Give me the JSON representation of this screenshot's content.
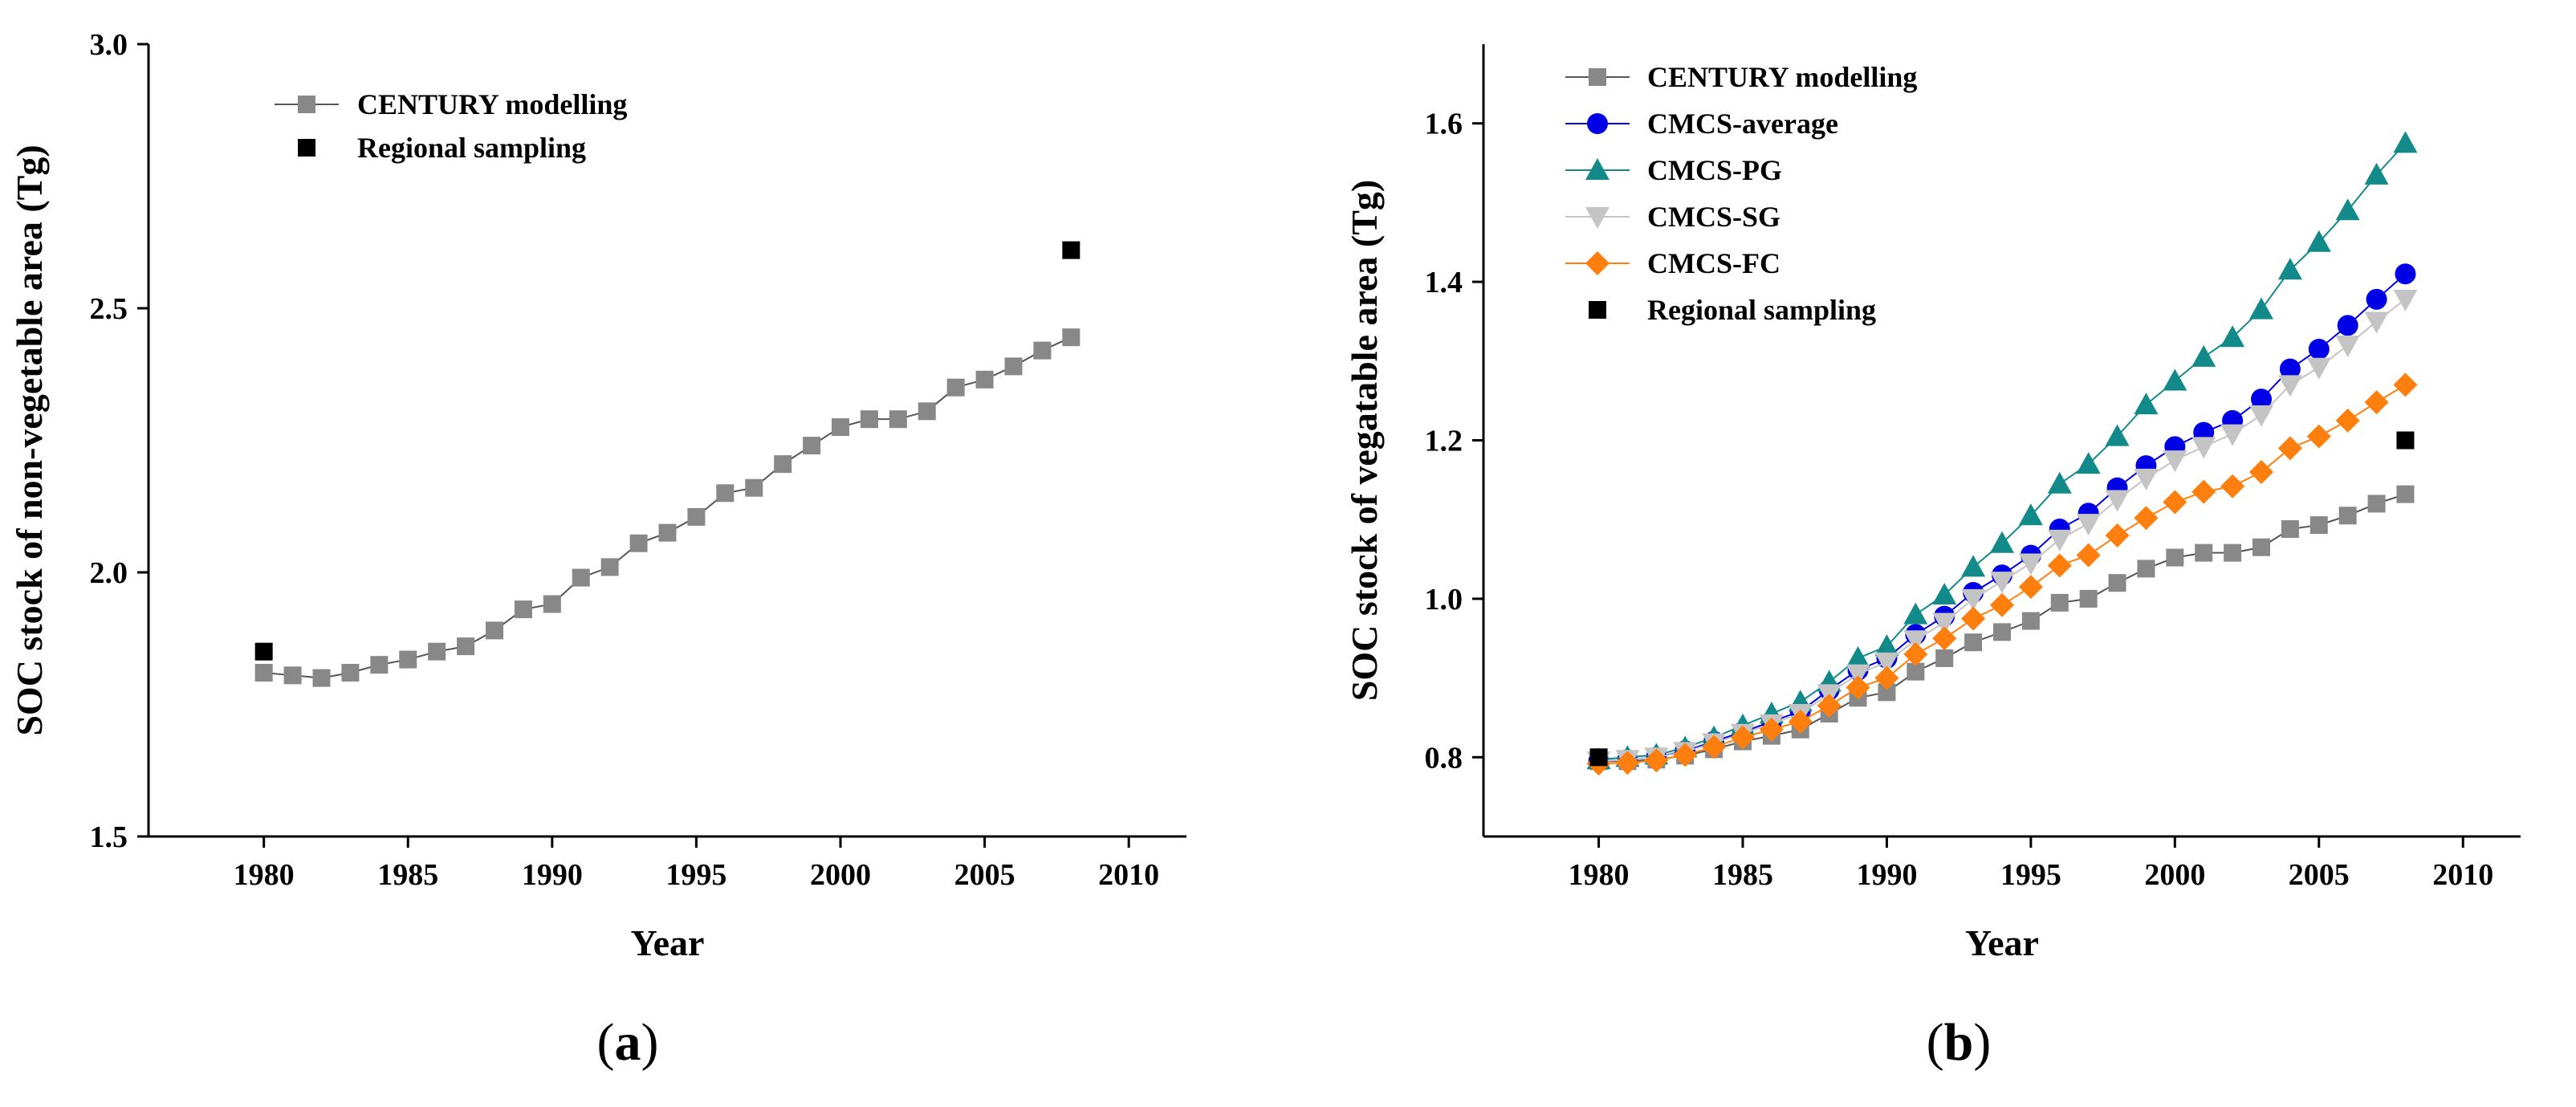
{
  "colors": {
    "century": "#888888",
    "cmcs_average": "#0000e6",
    "cmcs_pg": "#138a8a",
    "cmcs_sg": "#c4c4c4",
    "cmcs_fc": "#ff7f0e",
    "sampling": "#000000"
  },
  "chart_data": [
    {
      "type": "line",
      "panel_label": "(a)",
      "panel_label_letter": "a",
      "title": "",
      "xlabel": "Year",
      "ylabel": "SOC stock of non-vegetable area (Tg)",
      "xlim": [
        1976,
        2012
      ],
      "ylim": [
        1.5,
        3.0
      ],
      "xticks": [
        1980,
        1985,
        1990,
        1995,
        2000,
        2005,
        2010
      ],
      "yticks": [
        1.5,
        2.0,
        2.5,
        3.0
      ],
      "ytick_labels": [
        "1.5",
        "2.0",
        "2.5",
        "3.0"
      ],
      "legend_position": "top-left",
      "series": [
        {
          "name": "CENTURY modelling",
          "key": "century",
          "marker": "square",
          "line": true,
          "x": [
            1980,
            1981,
            1982,
            1983,
            1984,
            1985,
            1986,
            1987,
            1988,
            1989,
            1990,
            1991,
            1992,
            1993,
            1994,
            1995,
            1996,
            1997,
            1998,
            1999,
            2000,
            2001,
            2002,
            2003,
            2004,
            2005,
            2006,
            2007,
            2008
          ],
          "values": [
            1.81,
            1.805,
            1.8,
            1.81,
            1.825,
            1.835,
            1.85,
            1.86,
            1.89,
            1.93,
            1.94,
            1.99,
            2.01,
            2.055,
            2.075,
            2.105,
            2.15,
            2.16,
            2.205,
            2.24,
            2.275,
            2.29,
            2.29,
            2.305,
            2.35,
            2.365,
            2.39,
            2.42,
            2.445
          ]
        },
        {
          "name": "Regional sampling",
          "key": "sampling",
          "marker": "square",
          "line": false,
          "x": [
            1980,
            2008
          ],
          "values": [
            1.85,
            2.61
          ]
        }
      ]
    },
    {
      "type": "line",
      "panel_label": "(b)",
      "panel_label_letter": "b",
      "title": "",
      "xlabel": "Year",
      "ylabel": "SOC stock of vegatable area (Tg)",
      "xlim": [
        1976,
        2012
      ],
      "ylim": [
        0.7,
        1.7
      ],
      "xticks": [
        1980,
        1985,
        1990,
        1995,
        2000,
        2005,
        2010
      ],
      "yticks": [
        0.8,
        1.0,
        1.2,
        1.4,
        1.6
      ],
      "ytick_labels": [
        "0.8",
        "1.0",
        "1.2",
        "1.4",
        "1.6"
      ],
      "legend_position": "top-left",
      "series": [
        {
          "name": "CENTURY modelling",
          "key": "century",
          "marker": "square",
          "line": true,
          "x": [
            1980,
            1981,
            1982,
            1983,
            1984,
            1985,
            1986,
            1987,
            1988,
            1989,
            1990,
            1991,
            1992,
            1993,
            1994,
            1995,
            1996,
            1997,
            1998,
            1999,
            2000,
            2001,
            2002,
            2003,
            2004,
            2005,
            2006,
            2007,
            2008
          ],
          "values": [
            0.795,
            0.795,
            0.797,
            0.802,
            0.81,
            0.82,
            0.827,
            0.835,
            0.855,
            0.875,
            0.882,
            0.908,
            0.925,
            0.945,
            0.958,
            0.972,
            0.995,
            1.0,
            1.02,
            1.038,
            1.052,
            1.058,
            1.058,
            1.065,
            1.088,
            1.093,
            1.105,
            1.12,
            1.132
          ]
        },
        {
          "name": "CMCS-average",
          "key": "cmcs_average",
          "marker": "circle",
          "line": true,
          "x": [
            1980,
            1981,
            1982,
            1983,
            1984,
            1985,
            1986,
            1987,
            1988,
            1989,
            1990,
            1991,
            1992,
            1993,
            1994,
            1995,
            1996,
            1997,
            1998,
            1999,
            2000,
            2001,
            2002,
            2003,
            2004,
            2005,
            2006,
            2007,
            2008
          ],
          "values": [
            0.795,
            0.797,
            0.8,
            0.808,
            0.82,
            0.832,
            0.845,
            0.858,
            0.885,
            0.91,
            0.925,
            0.955,
            0.978,
            1.008,
            1.03,
            1.055,
            1.088,
            1.108,
            1.14,
            1.168,
            1.192,
            1.21,
            1.225,
            1.252,
            1.29,
            1.315,
            1.345,
            1.378,
            1.41
          ]
        },
        {
          "name": "CMCS-PG",
          "key": "cmcs_pg",
          "marker": "triangle-up",
          "line": true,
          "x": [
            1980,
            1981,
            1982,
            1983,
            1984,
            1985,
            1986,
            1987,
            1988,
            1989,
            1990,
            1991,
            1992,
            1993,
            1994,
            1995,
            1996,
            1997,
            1998,
            1999,
            2000,
            2001,
            2002,
            2003,
            2004,
            2005,
            2006,
            2007,
            2008
          ],
          "values": [
            0.797,
            0.8,
            0.803,
            0.812,
            0.825,
            0.84,
            0.855,
            0.87,
            0.895,
            0.925,
            0.94,
            0.98,
            1.005,
            1.04,
            1.07,
            1.105,
            1.145,
            1.17,
            1.205,
            1.245,
            1.275,
            1.305,
            1.33,
            1.365,
            1.415,
            1.45,
            1.49,
            1.535,
            1.575
          ]
        },
        {
          "name": "CMCS-SG",
          "key": "cmcs_sg",
          "marker": "triangle-down",
          "line": true,
          "x": [
            1980,
            1981,
            1982,
            1983,
            1984,
            1985,
            1986,
            1987,
            1988,
            1989,
            1990,
            1991,
            1992,
            1993,
            1994,
            1995,
            1996,
            1997,
            1998,
            1999,
            2000,
            2001,
            2002,
            2003,
            2004,
            2005,
            2006,
            2007,
            2008
          ],
          "values": [
            0.795,
            0.797,
            0.8,
            0.807,
            0.818,
            0.83,
            0.842,
            0.855,
            0.88,
            0.905,
            0.92,
            0.948,
            0.97,
            1.0,
            1.022,
            1.045,
            1.075,
            1.095,
            1.125,
            1.152,
            1.175,
            1.192,
            1.208,
            1.232,
            1.27,
            1.292,
            1.32,
            1.35,
            1.378
          ]
        },
        {
          "name": "CMCS-FC",
          "key": "cmcs_fc",
          "marker": "diamond",
          "line": true,
          "x": [
            1980,
            1981,
            1982,
            1983,
            1984,
            1985,
            1986,
            1987,
            1988,
            1989,
            1990,
            1991,
            1992,
            1993,
            1994,
            1995,
            1996,
            1997,
            1998,
            1999,
            2000,
            2001,
            2002,
            2003,
            2004,
            2005,
            2006,
            2007,
            2008
          ],
          "values": [
            0.792,
            0.793,
            0.796,
            0.803,
            0.813,
            0.825,
            0.835,
            0.845,
            0.865,
            0.888,
            0.9,
            0.93,
            0.95,
            0.975,
            0.992,
            1.015,
            1.042,
            1.055,
            1.08,
            1.102,
            1.122,
            1.135,
            1.142,
            1.16,
            1.19,
            1.205,
            1.225,
            1.248,
            1.27
          ]
        },
        {
          "name": "Regional sampling",
          "key": "sampling",
          "marker": "square",
          "line": false,
          "x": [
            1980,
            2008
          ],
          "values": [
            0.8,
            1.2
          ]
        }
      ]
    }
  ]
}
